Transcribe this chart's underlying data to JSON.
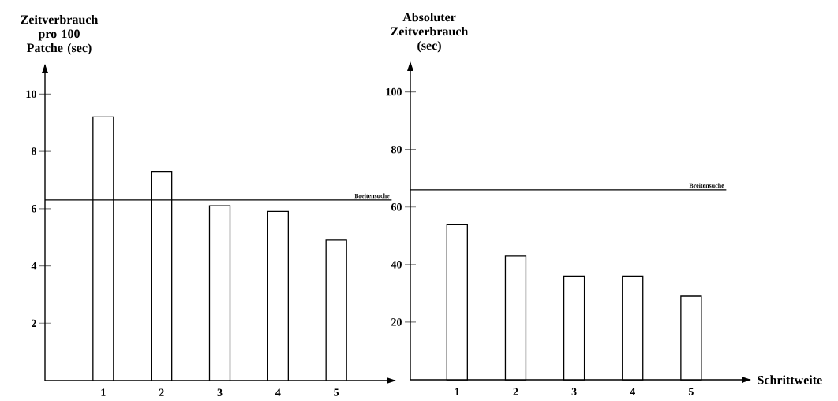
{
  "chart_data": [
    {
      "type": "bar",
      "ylabel": "Zeitverbrauch pro 100 Patche (sec)",
      "categories": [
        "1",
        "2",
        "3",
        "4",
        "5"
      ],
      "values": [
        9.2,
        7.3,
        6.1,
        5.9,
        4.9
      ],
      "color": "#000000",
      "ylim": [
        0,
        11
      ],
      "yticks": [
        2,
        4,
        6,
        8,
        10
      ],
      "ref_lines": [
        {
          "axis": "y",
          "value": 6.3,
          "label": "Breitensuche"
        }
      ]
    },
    {
      "type": "bar",
      "ylabel": "Absoluter Zeitverbrauch (sec)",
      "xlabel": "Schrittweite",
      "categories": [
        "1",
        "2",
        "3",
        "4",
        "5"
      ],
      "values": [
        54,
        43,
        36,
        36,
        29
      ],
      "color": "#000000",
      "ylim": [
        0,
        110
      ],
      "yticks": [
        20,
        40,
        60,
        80,
        100
      ],
      "ref_lines": [
        {
          "axis": "y",
          "value": 66,
          "label": "Breitensuche"
        }
      ]
    }
  ]
}
